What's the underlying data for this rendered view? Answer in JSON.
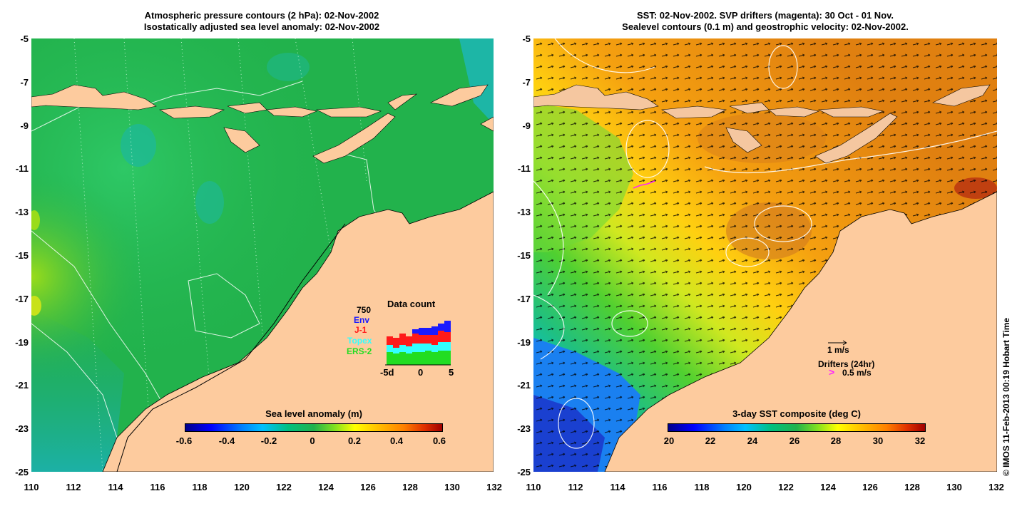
{
  "left_panel": {
    "title_line1": "Atmospheric pressure contours (2 hPa): 02-Nov-2002",
    "title_line2": "Isostatically adjusted sea level anomaly: 02-Nov-2002",
    "colorbar": {
      "title": "Sea level anomaly (m)",
      "ticks": [
        "-0.6",
        "-0.4",
        "-0.2",
        "0",
        "0.2",
        "0.4",
        "0.6"
      ],
      "range": [
        -0.6,
        0.6
      ]
    },
    "data_count": {
      "title": "Data count",
      "max_label": "750",
      "legend": [
        {
          "label": "Env",
          "color": "#1a1aff"
        },
        {
          "label": "J-1",
          "color": "#ff1a1a"
        },
        {
          "label": "Topex",
          "color": "#33ffff"
        },
        {
          "label": "ERS-2",
          "color": "#22dd22"
        }
      ],
      "x_ticks": [
        "-5d",
        "0",
        "5"
      ]
    }
  },
  "right_panel": {
    "title_line1": "SST: 02-Nov-2002. SVP drifters (magenta): 30 Oct - 01 Nov.",
    "title_line2": "Sealevel contours (0.1 m) and geostrophic velocity: 02-Nov-2002.",
    "colorbar": {
      "title": "3-day SST composite (deg C)",
      "ticks": [
        "20",
        "22",
        "24",
        "26",
        "28",
        "30",
        "32"
      ],
      "range": [
        20,
        32
      ]
    },
    "velocity_scale": "1 m/s",
    "drifters_label": "Drifters (24hr)",
    "drifters_scale": "0.5 m/s"
  },
  "axes": {
    "lat_ticks": [
      "-5",
      "-7",
      "-9",
      "-11",
      "-13",
      "-15",
      "-17",
      "-19",
      "-21",
      "-23",
      "-25"
    ],
    "lon_ticks": [
      "110",
      "112",
      "114",
      "116",
      "118",
      "120",
      "122",
      "124",
      "126",
      "128",
      "130",
      "132"
    ]
  },
  "copyright": "© IMOS 11-Feb-2013 00:19 Hobart Time",
  "colors": {
    "land": "#fdcb9e",
    "island": "#f5c7a0",
    "sla_green": "#22b24c",
    "sst_orange": "#f09a10"
  }
}
